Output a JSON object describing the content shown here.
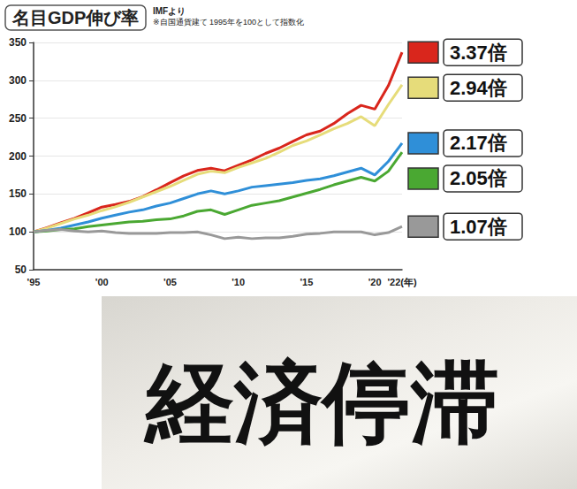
{
  "chart_data": {
    "type": "line",
    "title": "名目GDP伸び率",
    "subtitle": "IMFより",
    "annotations": [
      "※自国通貨建て 1995年を100として指数化"
    ],
    "categories": [
      "'95",
      null,
      null,
      null,
      null,
      "'00",
      null,
      null,
      null,
      null,
      "'05",
      null,
      null,
      null,
      null,
      "'10",
      null,
      null,
      null,
      null,
      "'15",
      null,
      null,
      null,
      null,
      "'20",
      null,
      "'22(年)"
    ],
    "ylim": [
      50,
      350
    ],
    "yticks": [
      50,
      100,
      150,
      200,
      250,
      300,
      350
    ],
    "grid": true,
    "series": [
      {
        "color": "#d9261c",
        "end_label": "3.37倍",
        "values": [
          100,
          105.6,
          112,
          117.9,
          125,
          132.6,
          136.1,
          140.1,
          146.4,
          155.4,
          164.8,
          173.9,
          181,
          184,
          180.6,
          188,
          195,
          203.5,
          210.5,
          219.5,
          228,
          233,
          243,
          256,
          267,
          262,
          293,
          337
        ]
      },
      {
        "color": "#e6dc7a",
        "end_label": "2.94倍",
        "values": [
          100,
          105,
          111,
          117,
          122,
          128,
          133,
          139,
          146,
          153,
          160,
          168,
          176,
          180,
          178,
          185,
          191,
          197,
          205,
          214,
          220,
          228,
          236,
          243,
          252,
          240,
          268,
          294
        ]
      },
      {
        "color": "#2f8fd8",
        "end_label": "2.17倍",
        "values": [
          100,
          102,
          105,
          109,
          113,
          118,
          122,
          126,
          129,
          134,
          138,
          144,
          150,
          154,
          150,
          154,
          159,
          161,
          163,
          165,
          168,
          170,
          174,
          179,
          184,
          175,
          193,
          217
        ]
      },
      {
        "color": "#4aa832",
        "end_label": "2.05倍",
        "values": [
          100,
          101,
          103,
          104,
          107,
          109,
          111,
          113,
          114,
          116,
          117,
          121,
          127,
          129,
          123,
          129,
          135,
          138,
          141,
          146,
          151,
          156,
          162,
          167,
          172,
          167,
          180,
          205
        ]
      },
      {
        "color": "#999999",
        "end_label": "1.07倍",
        "values": [
          100,
          102,
          103,
          101,
          100,
          101,
          99,
          98,
          98,
          98,
          99,
          99,
          100,
          96,
          91,
          93,
          91,
          92,
          92,
          94,
          97,
          98,
          100,
          100,
          100,
          96,
          99,
          107
        ]
      }
    ]
  },
  "image": {
    "text": "経済停滞"
  }
}
